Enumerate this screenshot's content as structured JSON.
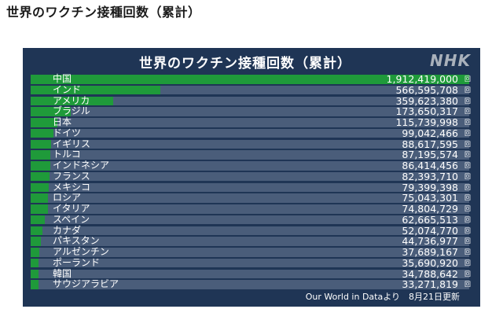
{
  "page_heading": "世界のワクチン接種回数（累計）",
  "chart_data": {
    "type": "bar",
    "title": "世界のワクチン接種回数（累計）",
    "unit": "回",
    "categories": [
      "中国",
      "インド",
      "アメリカ",
      "ブラジル",
      "日本",
      "ドイツ",
      "イギリス",
      "トルコ",
      "インドネシア",
      "フランス",
      "メキシコ",
      "ロシア",
      "イタリア",
      "スペイン",
      "カナダ",
      "パキスタン",
      "アルゼンチン",
      "ポーランド",
      "韓国",
      "サウジアラビア"
    ],
    "values": [
      1912419000,
      566595708,
      359623380,
      173650317,
      115739998,
      99042466,
      88617595,
      87195574,
      86414456,
      82393710,
      79399398,
      75043301,
      74804729,
      62665513,
      52074770,
      44736977,
      37689167,
      35690920,
      34788642,
      33271819
    ],
    "value_labels": [
      "1,912,419,000",
      "566,595,708",
      "359,623,380",
      "173,650,317",
      "115,739,998",
      "99,042,466",
      "88,617,595",
      "87,195,574",
      "86,414,456",
      "82,393,710",
      "79,399,398",
      "75,043,301",
      "74,804,729",
      "62,665,513",
      "52,074,770",
      "44,736,977",
      "37,689,167",
      "35,690,920",
      "34,788,642",
      "33,271,819"
    ],
    "xlim": [
      0,
      1912419000
    ]
  },
  "source_note": "Our World in Dataより　8月21日更新",
  "logo_text": "NHK",
  "colors": {
    "panel": "#1f3555",
    "bar": "#1f9a3a",
    "track": "#4a5d7a",
    "text": "#ffffff"
  }
}
